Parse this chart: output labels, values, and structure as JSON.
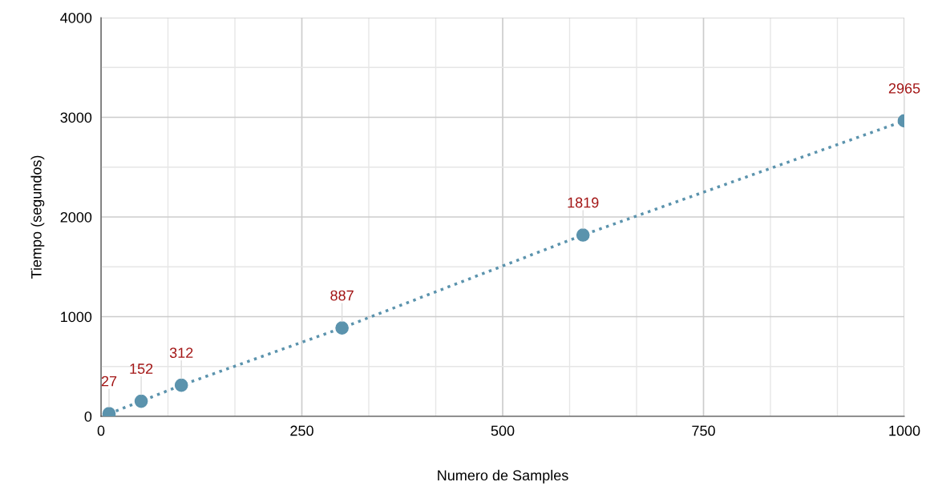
{
  "chart_data": {
    "type": "line",
    "xlabel": "Numero de Samples",
    "ylabel": "Tiempo (segundos)",
    "x": [
      10,
      50,
      100,
      300,
      600,
      1000
    ],
    "series": [
      {
        "color": "#5b93ad",
        "values": [
          27,
          152,
          312,
          887,
          1819,
          2965
        ]
      }
    ],
    "xlim": [
      0,
      1000
    ],
    "ylim": [
      0,
      4000
    ],
    "xticks": [
      0,
      {
        "value": 83.33,
        "label": null
      },
      {
        "value": 166.67,
        "label": null
      },
      250,
      {
        "value": 333.33,
        "label": null
      },
      {
        "value": 416.67,
        "label": null
      },
      500,
      {
        "value": 583.33,
        "label": null
      },
      {
        "value": 666.67,
        "label": null
      },
      750,
      {
        "value": 833.33,
        "label": null
      },
      {
        "value": 916.67,
        "label": null
      },
      1000
    ],
    "yticks": [
      0,
      {
        "value": 500,
        "label": null
      },
      1000,
      {
        "value": 1500,
        "label": null
      },
      2000,
      {
        "value": 2500,
        "label": null
      },
      3000,
      {
        "value": 3500,
        "label": null
      },
      4000
    ],
    "grid": true,
    "marker": "circle",
    "line_style": "dotted",
    "data_labels": true
  }
}
